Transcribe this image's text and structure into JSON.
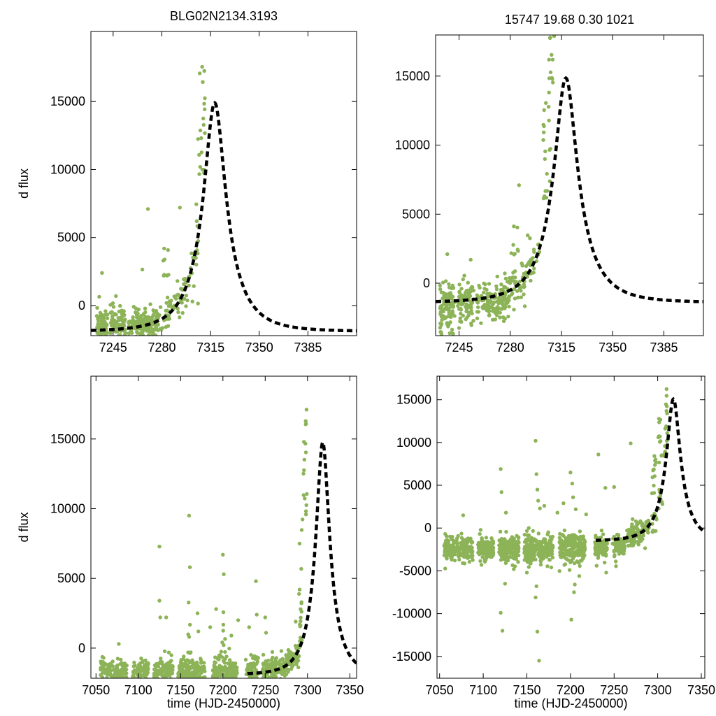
{
  "figure": {
    "marker_color": "#8cb357",
    "curve_color": "#000000",
    "frame_color": "#000000",
    "text_color": "#000000",
    "background": "#ffffff",
    "marker_radius": 2.7,
    "curve_width": 4.5,
    "curve_dash": "8 5",
    "tick_len": 7
  },
  "chart_data": [
    {
      "id": "top-left",
      "type": "scatter",
      "title": "BLG02N2134.3193",
      "xlabel": "",
      "ylabel": "d flux",
      "frame": {
        "l": 130,
        "r": 510,
        "t": 45,
        "b": 480
      },
      "xlim": [
        7229,
        7420
      ],
      "ylim": [
        -2210,
        20150
      ],
      "xticks": [
        7245,
        7280,
        7315,
        7350,
        7385
      ],
      "yticks": [
        0,
        5000,
        10000,
        15000
      ],
      "seed": 11,
      "model": {
        "t0": 7318,
        "tE": 26,
        "u0": 0.3,
        "baseline": -1900,
        "peak": 14900,
        "t_start": 7229
      },
      "scatter": [
        {
          "kind": "band",
          "t": [
            7233,
            7241
          ],
          "n": 75,
          "c": -1500,
          "s": 600
        },
        {
          "kind": "band",
          "t": [
            7243,
            7254
          ],
          "n": 65,
          "c": -1300,
          "s": 550
        },
        {
          "kind": "band",
          "t": [
            7256,
            7277
          ],
          "n": 115,
          "c": -1350,
          "s": 500
        },
        {
          "kind": "model_band",
          "t": [
            7262,
            7288
          ],
          "n": 75,
          "s": 550
        },
        {
          "kind": "model_band",
          "t": [
            7288,
            7307
          ],
          "n": 50,
          "s": 900
        },
        {
          "kind": "column",
          "tc": 7283,
          "jitter": 2,
          "n": 8,
          "f": [
            2200,
            5300
          ],
          "pow": 1.6
        },
        {
          "kind": "column",
          "tc": 7308.5,
          "jitter": 2.5,
          "n": 20,
          "f": [
            9500,
            18200
          ],
          "pow": 1.6
        },
        {
          "kind": "points",
          "pts": [
            [
              7237,
              2400
            ],
            [
              7235,
              650
            ],
            [
              7247,
              700
            ],
            [
              7266,
              2650
            ],
            [
              7270,
              7100
            ],
            [
              7281,
              3300
            ],
            [
              7302,
              300
            ],
            [
              7306,
              150
            ],
            [
              7293,
              7200
            ]
          ]
        }
      ]
    },
    {
      "id": "top-right",
      "type": "scatter",
      "title": "15747  19.68  0.30  1021",
      "xlabel": "",
      "ylabel": "",
      "frame": {
        "l": 623,
        "r": 1006,
        "t": 50,
        "b": 480
      },
      "xlim": [
        7229,
        7412
      ],
      "ylim": [
        -3800,
        17980
      ],
      "xticks": [
        7245,
        7280,
        7315,
        7350,
        7385
      ],
      "yticks": [
        0,
        5000,
        10000,
        15000
      ],
      "seed": 22,
      "model": {
        "t0": 7318,
        "tE": 26,
        "u0": 0.3,
        "baseline": -1400,
        "peak": 14860,
        "t_start": 7229
      },
      "scatter": [
        {
          "kind": "band",
          "t": [
            7232,
            7242
          ],
          "n": 95,
          "c": -1700,
          "s": 900
        },
        {
          "kind": "band",
          "t": [
            7244,
            7255
          ],
          "n": 85,
          "c": -1450,
          "s": 750
        },
        {
          "kind": "band",
          "t": [
            7257,
            7277
          ],
          "n": 135,
          "c": -1250,
          "s": 600
        },
        {
          "kind": "model_band",
          "t": [
            7276,
            7300
          ],
          "n": 85,
          "s": 800
        },
        {
          "kind": "column",
          "tc": 7284,
          "jitter": 2,
          "n": 7,
          "f": [
            2000,
            5100
          ],
          "pow": 1.6
        },
        {
          "kind": "column",
          "tc": 7305,
          "jitter": 2.5,
          "n": 20,
          "f": [
            6000,
            14500
          ],
          "pow": 1.4
        },
        {
          "kind": "column",
          "tc": 7307.5,
          "jitter": 2,
          "n": 10,
          "f": [
            14500,
            17800
          ],
          "pow": 1.0
        },
        {
          "kind": "points",
          "pts": [
            [
              7237,
              2100
            ],
            [
              7253,
              1700
            ],
            [
              7286,
              7100
            ],
            [
              7310,
              17900
            ],
            [
              7240,
              -3600
            ],
            [
              7245,
              -3250
            ],
            [
              7238,
              -3000
            ],
            [
              7298,
              1600
            ],
            [
              7233,
              -3700
            ],
            [
              7260,
              -2900
            ]
          ]
        }
      ]
    },
    {
      "id": "bottom-left",
      "type": "scatter",
      "title": "",
      "xlabel": "time (HJD-2450000)",
      "ylabel": "d flux",
      "frame": {
        "l": 130,
        "r": 510,
        "t": 538,
        "b": 970
      },
      "xlim": [
        7044,
        7358
      ],
      "ylim": [
        -2160,
        19500
      ],
      "xticks": [
        7050,
        7100,
        7150,
        7200,
        7250,
        7300,
        7350
      ],
      "yticks": [
        0,
        5000,
        10000,
        15000
      ],
      "seed": 33,
      "model": {
        "t0": 7318,
        "tE": 26,
        "u0": 0.3,
        "baseline": -1900,
        "peak": 14750,
        "t_start": 7229
      },
      "scatter": [
        {
          "kind": "band",
          "t": [
            7055,
            7087
          ],
          "n": 130,
          "c": -1800,
          "s": 480
        },
        {
          "kind": "band",
          "t": [
            7093,
            7112
          ],
          "n": 85,
          "c": -1800,
          "s": 470
        },
        {
          "kind": "band",
          "t": [
            7118,
            7141
          ],
          "n": 115,
          "c": -1750,
          "s": 480
        },
        {
          "kind": "band",
          "t": [
            7147,
            7179
          ],
          "n": 170,
          "c": -1750,
          "s": 500
        },
        {
          "kind": "band",
          "t": [
            7187,
            7217
          ],
          "n": 160,
          "c": -1700,
          "s": 520
        },
        {
          "kind": "band",
          "t": [
            7227,
            7242
          ],
          "n": 75,
          "c": -1650,
          "s": 480
        },
        {
          "kind": "band",
          "t": [
            7247,
            7262
          ],
          "n": 75,
          "c": -1550,
          "s": 450
        },
        {
          "kind": "model_band",
          "t": [
            7262,
            7290
          ],
          "n": 120,
          "s": 450
        },
        {
          "kind": "column",
          "tc": 7292,
          "jitter": 2.2,
          "n": 18,
          "f": [
            500,
            9500
          ],
          "pow": 1.7
        },
        {
          "kind": "column",
          "tc": 7297,
          "jitter": 2.2,
          "n": 16,
          "f": [
            9000,
            17800
          ],
          "pow": 1.3
        },
        {
          "kind": "column",
          "tc": 7160,
          "jitter": 1.5,
          "n": 7,
          "f": [
            -500,
            3300
          ],
          "pow": 1.4
        },
        {
          "kind": "column",
          "tc": 7201,
          "jitter": 2,
          "n": 7,
          "f": [
            -500,
            2600
          ],
          "pow": 1.4
        },
        {
          "kind": "points",
          "pts": [
            [
              7077,
              300
            ],
            [
              7125,
              7280
            ],
            [
              7125,
              3400
            ],
            [
              7126,
              2200
            ],
            [
              7133,
              2200
            ],
            [
              7160,
              9500
            ],
            [
              7161,
              5800
            ],
            [
              7170,
              2500
            ],
            [
              7171,
              1200
            ],
            [
              7185,
              1500
            ],
            [
              7192,
              2800
            ],
            [
              7200,
              6700
            ],
            [
              7201,
              5300
            ],
            [
              7210,
              900
            ],
            [
              7218,
              2000
            ],
            [
              7231,
              1500
            ],
            [
              7239,
              4800
            ],
            [
              7240,
              2400
            ],
            [
              7250,
              2200
            ],
            [
              7251,
              1100
            ],
            [
              7286,
              1900
            ],
            [
              7162,
              -300
            ]
          ]
        }
      ]
    },
    {
      "id": "bottom-right",
      "type": "scatter",
      "title": "",
      "xlabel": "time (HJD-2450000)",
      "ylabel": "",
      "frame": {
        "l": 625,
        "r": 1008,
        "t": 538,
        "b": 970
      },
      "xlim": [
        7047,
        7354
      ],
      "ylim": [
        -17550,
        17750
      ],
      "xticks": [
        7050,
        7100,
        7150,
        7200,
        7250,
        7300,
        7350
      ],
      "yticks": [
        -15000,
        -10000,
        -5000,
        0,
        5000,
        10000,
        15000
      ],
      "seed": 44,
      "model": {
        "t0": 7318,
        "tE": 26,
        "u0": 0.3,
        "baseline": -1500,
        "peak": 15080,
        "t_start": 7229
      },
      "scatter": [
        {
          "kind": "band",
          "t": [
            7055,
            7088
          ],
          "n": 180,
          "c": -2500,
          "s": 700
        },
        {
          "kind": "band",
          "t": [
            7094,
            7112
          ],
          "n": 115,
          "c": -2500,
          "s": 700
        },
        {
          "kind": "band",
          "t": [
            7118,
            7141
          ],
          "n": 165,
          "c": -2450,
          "s": 750
        },
        {
          "kind": "band",
          "t": [
            7147,
            7180
          ],
          "n": 230,
          "c": -2450,
          "s": 800
        },
        {
          "kind": "band",
          "t": [
            7187,
            7217
          ],
          "n": 210,
          "c": -2400,
          "s": 850
        },
        {
          "kind": "band",
          "t": [
            7228,
            7242
          ],
          "n": 95,
          "c": -2250,
          "s": 700
        },
        {
          "kind": "band",
          "t": [
            7248,
            7262
          ],
          "n": 85,
          "c": -2150,
          "s": 600
        },
        {
          "kind": "model_band",
          "t": [
            7263,
            7290
          ],
          "n": 130,
          "s": 700
        },
        {
          "kind": "column",
          "tc": 7296,
          "jitter": 2.6,
          "n": 22,
          "f": [
            -500,
            9000
          ],
          "pow": 1.6
        },
        {
          "kind": "column",
          "tc": 7303,
          "jitter": 2.4,
          "n": 20,
          "f": [
            2000,
            14000
          ],
          "pow": 1.5
        },
        {
          "kind": "column",
          "tc": 7309,
          "jitter": 2,
          "n": 14,
          "f": [
            8000,
            17600
          ],
          "pow": 1.2
        },
        {
          "kind": "points",
          "pts": [
            [
              7077,
              1500
            ],
            [
              7120,
              6900
            ],
            [
              7121,
              4200
            ],
            [
              7125,
              -6500
            ],
            [
              7120,
              -9900
            ],
            [
              7122,
              -12000
            ],
            [
              7160,
              10200
            ],
            [
              7161,
              6300
            ],
            [
              7162,
              4500
            ],
            [
              7163,
              3200
            ],
            [
              7160,
              -8100
            ],
            [
              7162,
              -12100
            ],
            [
              7164,
              -15500
            ],
            [
              7165,
              2300
            ],
            [
              7170,
              2600
            ],
            [
              7178,
              -4600
            ],
            [
              7185,
              1800
            ],
            [
              7192,
              2900
            ],
            [
              7200,
              6500
            ],
            [
              7202,
              5200
            ],
            [
              7203,
              3600
            ],
            [
              7204,
              -7500
            ],
            [
              7201,
              -10700
            ],
            [
              7206,
              2200
            ],
            [
              7210,
              -5600
            ],
            [
              7218,
              1600
            ],
            [
              7230,
              -4400
            ],
            [
              7232,
              8600
            ],
            [
              7240,
              4700
            ],
            [
              7241,
              -5200
            ],
            [
              7250,
              4800
            ],
            [
              7252,
              -3900
            ],
            [
              7269,
              9900
            ],
            [
              7150,
              -5200
            ],
            [
              7135,
              -4800
            ],
            [
              7098,
              -4300
            ],
            [
              7161,
              -6800
            ],
            [
              7199,
              -4900
            ],
            [
              7205,
              -6600
            ],
            [
              7166,
              -3900
            ],
            [
              7126,
              1800
            ]
          ]
        }
      ]
    }
  ]
}
